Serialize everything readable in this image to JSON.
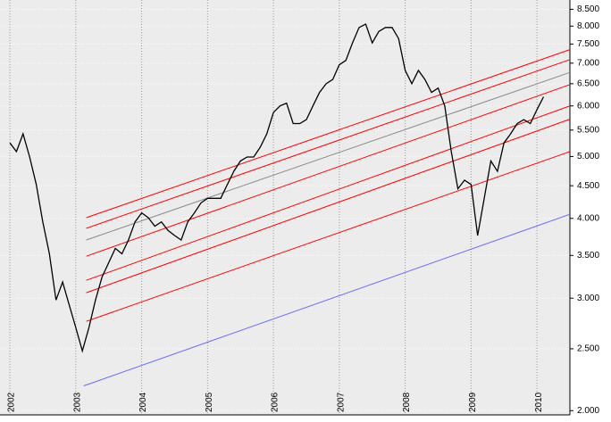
{
  "chart_data": {
    "type": "line",
    "log_y": true,
    "grid": true,
    "xlim": [
      2001.85,
      2010.5
    ],
    "ylim": [
      1970,
      8790
    ],
    "xticks": [
      2002,
      2003,
      2004,
      2005,
      2006,
      2007,
      2008,
      2009,
      2010
    ],
    "yticks": [
      {
        "value": 2000,
        "label": "2.000"
      },
      {
        "value": 2500,
        "label": "2.500"
      },
      {
        "value": 3000,
        "label": "3.000"
      },
      {
        "value": 3500,
        "label": "3.500"
      },
      {
        "value": 4000,
        "label": "4.000"
      },
      {
        "value": 4500,
        "label": "4.500"
      },
      {
        "value": 5000,
        "label": "5.000"
      },
      {
        "value": 5500,
        "label": "5.500"
      },
      {
        "value": 6000,
        "label": "6.000"
      },
      {
        "value": 6500,
        "label": "6.500"
      },
      {
        "value": 7000,
        "label": "7.000"
      },
      {
        "value": 7500,
        "label": "7.500"
      },
      {
        "value": 8000,
        "label": "8.000"
      },
      {
        "value": 8500,
        "label": "8.500"
      }
    ],
    "series": [
      {
        "color": "#000000",
        "x": [
          2002.0,
          2002.1,
          2002.2,
          2002.3,
          2002.4,
          2002.5,
          2002.6,
          2002.7,
          2002.8,
          2002.9,
          2003.0,
          2003.1,
          2003.2,
          2003.3,
          2003.4,
          2003.5,
          2003.6,
          2003.7,
          2003.8,
          2003.9,
          2004.0,
          2004.1,
          2004.2,
          2004.3,
          2004.4,
          2004.5,
          2004.6,
          2004.7,
          2004.8,
          2004.9,
          2005.0,
          2005.1,
          2005.2,
          2005.3,
          2005.4,
          2005.5,
          2005.6,
          2005.7,
          2005.8,
          2005.9,
          2006.0,
          2006.1,
          2006.2,
          2006.3,
          2006.4,
          2006.5,
          2006.6,
          2006.7,
          2006.8,
          2006.9,
          2007.0,
          2007.1,
          2007.2,
          2007.3,
          2007.4,
          2007.5,
          2007.6,
          2007.7,
          2007.8,
          2007.9,
          2008.0,
          2008.1,
          2008.2,
          2008.3,
          2008.4,
          2008.5,
          2008.6,
          2008.7,
          2008.8,
          2008.9,
          2009.0,
          2009.1,
          2009.2,
          2009.3,
          2009.4,
          2009.5,
          2009.6,
          2009.7,
          2009.8,
          2009.9,
          2010.0,
          2010.1
        ],
        "values": [
          5250,
          5090,
          5425,
          4990,
          4520,
          3950,
          3520,
          2980,
          3180,
          2930,
          2700,
          2480,
          2700,
          2980,
          3240,
          3410,
          3590,
          3520,
          3700,
          3950,
          4080,
          4010,
          3890,
          3950,
          3830,
          3760,
          3700,
          3950,
          4080,
          4230,
          4300,
          4300,
          4300,
          4520,
          4740,
          4920,
          4990,
          4990,
          5170,
          5425,
          5860,
          6000,
          6060,
          5630,
          5630,
          5710,
          6000,
          6300,
          6500,
          6600,
          6960,
          7070,
          7530,
          7960,
          8060,
          7530,
          7850,
          7960,
          7960,
          7650,
          6820,
          6500,
          6820,
          6600,
          6300,
          6400,
          6000,
          5090,
          4450,
          4590,
          4520,
          3760,
          4300,
          4920,
          4740,
          5250,
          5425,
          5630,
          5710,
          5630,
          5920,
          6200
        ]
      }
    ],
    "lines": [
      {
        "color": "#6666ff",
        "x": [
          2003.12,
          2010.5
        ],
        "values": [
          2187,
          4060
        ]
      },
      {
        "color": "#ff0000",
        "x": [
          2003.16,
          2010.5
        ],
        "values": [
          4010,
          7350
        ]
      },
      {
        "color": "#ff0000",
        "x": [
          2003.16,
          2010.5
        ],
        "values": [
          3860,
          7090
        ]
      },
      {
        "color": "#888888",
        "x": [
          2003.16,
          2010.5
        ],
        "values": [
          3700,
          6770
        ]
      },
      {
        "color": "#ff0000",
        "x": [
          2003.16,
          2010.5
        ],
        "values": [
          3490,
          6480
        ]
      },
      {
        "color": "#ff0000",
        "x": [
          2003.16,
          2010.5
        ],
        "values": [
          3200,
          6000
        ]
      },
      {
        "color": "#ff0000",
        "x": [
          2003.16,
          2010.5
        ],
        "values": [
          3060,
          5720
        ]
      },
      {
        "color": "#ff0000",
        "x": [
          2003.16,
          2010.5
        ],
        "values": [
          2760,
          5090
        ]
      }
    ]
  }
}
